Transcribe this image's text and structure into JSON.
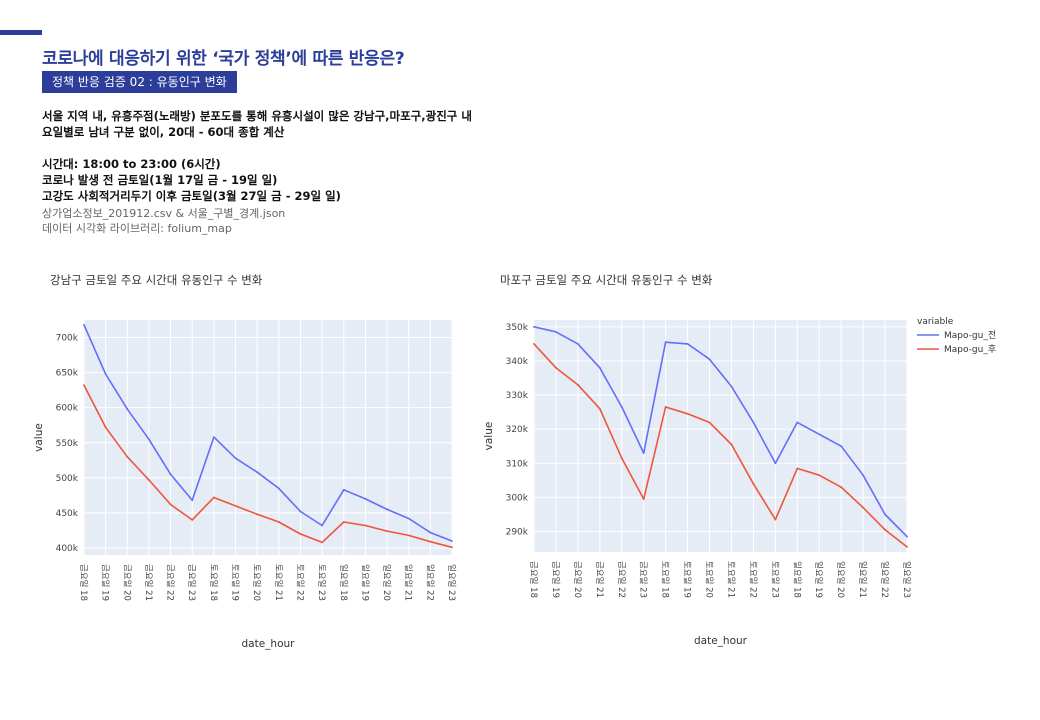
{
  "colors": {
    "accent": "#2c3e9a",
    "plot_bg": "#e5ecf6",
    "series_before": "#636efa",
    "series_after": "#ef553b"
  },
  "header": {
    "title": "코로나에 대응하기 위한 ‘국가 정책’에 따른 반응은?",
    "section_label": "정책 반응 검증 02 :  유동인구 변화"
  },
  "description": {
    "line1": "서울 지역 내, 유흥주점(노래방) 분포도를 통해 유흥시설이 많은 강남구,마포구,광진구 내",
    "line2": "요일별로 남녀 구분 없이, 20대 - 60대 종합 계산",
    "line3": "시간대: 18:00 to 23:00 (6시간)",
    "line4": "코로나 발생 전 금토일(1월 17일 금 - 19일 일)",
    "line5": "고강도 사회적거리두기 이후 금토일(3월 27일 금 - 29일 일)",
    "source1": "상가업소정보_201912.csv & 서울_구별_경계.json",
    "source2": "데이터 시각화 라이브러리: folium_map"
  },
  "chart_data": [
    {
      "type": "line",
      "title": "강남구 금토일 주요 시간대 유동인구 수 변화",
      "xlabel": "date_hour",
      "ylabel": "value",
      "ylim": [
        390000,
        725000
      ],
      "yticks": [
        400000,
        450000,
        500000,
        550000,
        600000,
        650000,
        700000
      ],
      "ytick_labels": [
        "400k",
        "450k",
        "500k",
        "550k",
        "600k",
        "650k",
        "700k"
      ],
      "categories": [
        "금요일 18",
        "금요일 19",
        "금요일 20",
        "금요일 21",
        "금요일 22",
        "금요일 23",
        "토요일 18",
        "토요일 19",
        "토요일 20",
        "토요일 21",
        "토요일 22",
        "토요일 23",
        "일요일 18",
        "일요일 19",
        "일요일 20",
        "일요일 21",
        "일요일 22",
        "일요일 23"
      ],
      "series": [
        {
          "name": "",
          "color": "#636efa",
          "values": [
            718000,
            648000,
            598000,
            555000,
            505000,
            468000,
            558000,
            528000,
            508000,
            485000,
            452000,
            432000,
            483000,
            470000,
            455000,
            442000,
            422000,
            410000
          ]
        },
        {
          "name": "",
          "color": "#ef553b",
          "values": [
            632000,
            572000,
            530000,
            497000,
            462000,
            440000,
            472000,
            460000,
            448000,
            437000,
            420000,
            408000,
            437000,
            432000,
            424000,
            418000,
            409000,
            401000
          ]
        }
      ],
      "legend": null
    },
    {
      "type": "line",
      "title": "마포구 금토일 주요 시간대 유동인구 수 변화",
      "xlabel": "date_hour",
      "ylabel": "value",
      "ylim": [
        284000,
        352000
      ],
      "yticks": [
        290000,
        300000,
        310000,
        320000,
        330000,
        340000,
        350000
      ],
      "ytick_labels": [
        "290k",
        "300k",
        "310k",
        "320k",
        "330k",
        "340k",
        "350k"
      ],
      "top_tick_label": "350k",
      "categories": [
        "금요일 18",
        "금요일 19",
        "금요일 20",
        "금요일 21",
        "금요일 22",
        "금요일 23",
        "토요일 18",
        "토요일 19",
        "토요일 20",
        "토요일 21",
        "토요일 22",
        "토요일 23",
        "일요일 18",
        "일요일 19",
        "일요일 20",
        "일요일 21",
        "일요일 22",
        "일요일 23"
      ],
      "series": [
        {
          "name": "Mapo-gu_전",
          "color": "#636efa",
          "values": [
            350000,
            348500,
            345000,
            338000,
            326500,
            313000,
            345500,
            345000,
            340500,
            332500,
            322000,
            310000,
            322000,
            318500,
            315000,
            306500,
            295000,
            288500
          ]
        },
        {
          "name": "Mapo-gu_후",
          "color": "#ef553b",
          "values": [
            345000,
            338000,
            333000,
            326000,
            311500,
            299500,
            326500,
            324500,
            322000,
            315500,
            304000,
            293500,
            308500,
            306500,
            303000,
            297000,
            290500,
            285500
          ]
        }
      ],
      "legend": {
        "title": "variable",
        "position": "top-right"
      }
    }
  ]
}
